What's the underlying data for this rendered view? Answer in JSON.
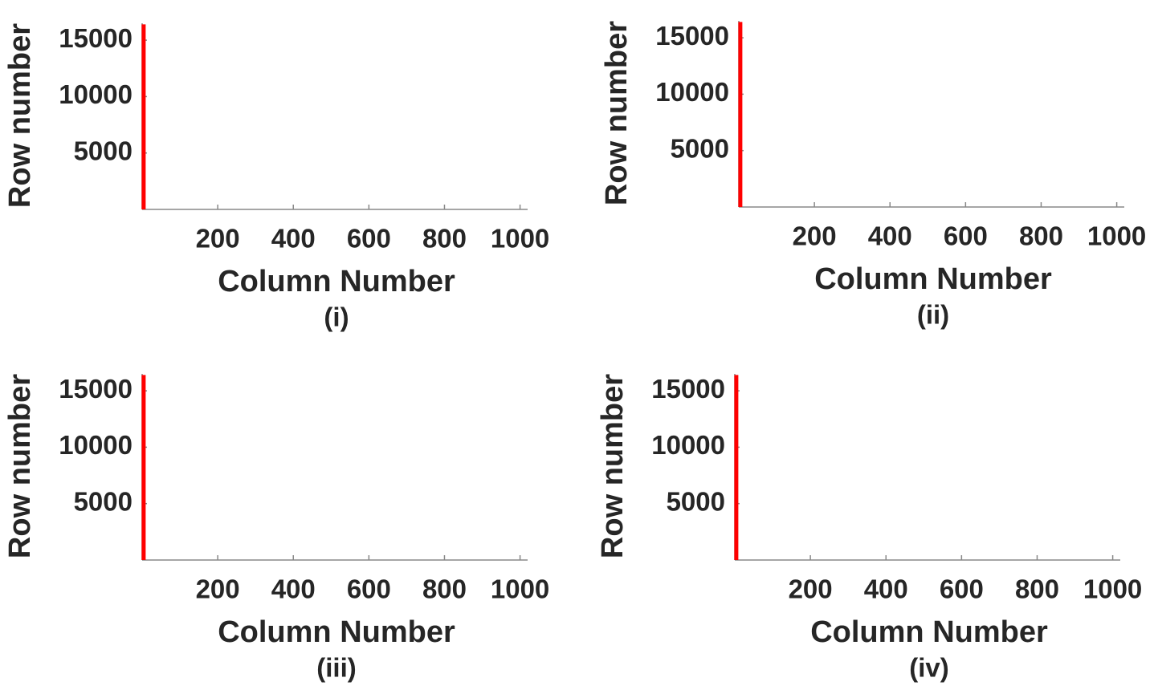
{
  "chart_data": [
    {
      "type": "line",
      "title": "(i)",
      "xlabel": "Column Number",
      "ylabel": "Row number",
      "x": [
        4,
        4
      ],
      "values": [
        0,
        16400
      ],
      "color": "#ff0000",
      "xlim": [
        0,
        1020
      ],
      "ylim": [
        0,
        16500
      ],
      "xticks": [
        200,
        400,
        600,
        800,
        1000
      ],
      "yticks": [
        5000,
        10000,
        15000
      ]
    },
    {
      "type": "line",
      "title": "(ii)",
      "xlabel": "Column Number",
      "ylabel": "Row number",
      "x": [
        4,
        4
      ],
      "values": [
        0,
        16400
      ],
      "color": "#ff0000",
      "xlim": [
        0,
        1020
      ],
      "ylim": [
        0,
        16500
      ],
      "xticks": [
        200,
        400,
        600,
        800,
        1000
      ],
      "yticks": [
        5000,
        10000,
        15000
      ]
    },
    {
      "type": "line",
      "title": "(iii)",
      "xlabel": "Column Number",
      "ylabel": "Row number",
      "x": [
        4,
        4
      ],
      "values": [
        0,
        16400
      ],
      "color": "#ff0000",
      "xlim": [
        0,
        1020
      ],
      "ylim": [
        0,
        16500
      ],
      "xticks": [
        200,
        400,
        600,
        800,
        1000
      ],
      "yticks": [
        5000,
        10000,
        15000
      ]
    },
    {
      "type": "line",
      "title": "(iv)",
      "xlabel": "Column Number",
      "ylabel": "Row number",
      "x": [
        4,
        4
      ],
      "values": [
        0,
        16400
      ],
      "color": "#ff0000",
      "xlim": [
        0,
        1020
      ],
      "ylim": [
        0,
        16500
      ],
      "xticks": [
        200,
        400,
        600,
        800,
        1000
      ],
      "yticks": [
        5000,
        10000,
        15000
      ]
    }
  ]
}
